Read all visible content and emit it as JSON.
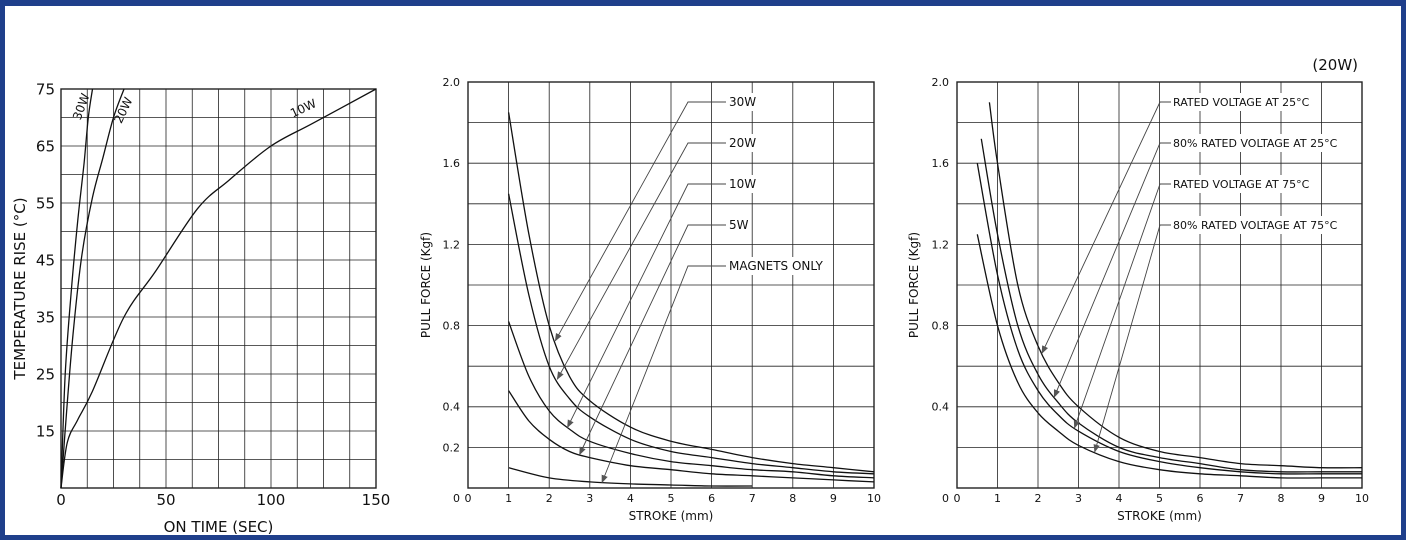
{
  "colors": {
    "frame": "#1f3f8b",
    "grid": "#222222",
    "curve": "#111111",
    "leader": "#444444"
  },
  "corner_note": "(20W)",
  "chart_data": [
    {
      "type": "line",
      "xlabel": "ON TIME (SEC)",
      "ylabel": "TEMPERATURE RISE (°C)",
      "xlim": [
        0,
        150
      ],
      "ylim": [
        5,
        75
      ],
      "xticks": [
        0,
        50,
        100,
        150
      ],
      "yticks": [
        15,
        25,
        35,
        45,
        55,
        65,
        75
      ],
      "grid": true,
      "series": [
        {
          "name": "30W",
          "x": [
            0,
            2,
            5,
            8,
            11,
            13,
            15
          ],
          "y": [
            5,
            25,
            40,
            52,
            62,
            70,
            75
          ]
        },
        {
          "name": "20W",
          "x": [
            0,
            3,
            6,
            10,
            15,
            20,
            25,
            30
          ],
          "y": [
            5,
            20,
            33,
            46,
            56,
            63,
            70,
            75
          ]
        },
        {
          "name": "10W",
          "x": [
            0,
            3,
            8,
            15,
            30,
            45,
            65,
            80,
            100,
            120,
            150
          ],
          "y": [
            5,
            13,
            17,
            22,
            35,
            43,
            54,
            59,
            65,
            69,
            75
          ]
        }
      ]
    },
    {
      "type": "line",
      "xlabel": "STROKE (mm)",
      "ylabel": "PULL FORCE (Kgf)",
      "xlim": [
        0,
        10
      ],
      "ylim": [
        0,
        2.0
      ],
      "xticks": [
        0,
        1,
        2,
        3,
        4,
        5,
        6,
        7,
        8,
        9,
        10
      ],
      "yticks": [
        0.2,
        0.4,
        0.8,
        1.2,
        1.6,
        2.0
      ],
      "grid": true,
      "series": [
        {
          "name": "30W",
          "x": [
            1,
            1.5,
            2,
            2.5,
            3,
            4,
            5,
            6,
            7,
            8,
            9,
            10
          ],
          "y": [
            1.85,
            1.25,
            0.8,
            0.55,
            0.43,
            0.3,
            0.23,
            0.19,
            0.15,
            0.12,
            0.1,
            0.08
          ]
        },
        {
          "name": "20W",
          "x": [
            1,
            1.5,
            2,
            2.5,
            3,
            4,
            5,
            6,
            7,
            8,
            9,
            10
          ],
          "y": [
            1.45,
            0.95,
            0.6,
            0.44,
            0.35,
            0.24,
            0.18,
            0.15,
            0.12,
            0.1,
            0.08,
            0.07
          ]
        },
        {
          "name": "10W",
          "x": [
            1,
            1.5,
            2,
            2.5,
            3,
            4,
            5,
            6,
            7,
            8,
            9,
            10
          ],
          "y": [
            0.82,
            0.55,
            0.38,
            0.29,
            0.23,
            0.17,
            0.13,
            0.11,
            0.09,
            0.08,
            0.06,
            0.05
          ]
        },
        {
          "name": "5W",
          "x": [
            1,
            1.5,
            2,
            2.5,
            3,
            4,
            5,
            6,
            7,
            8,
            9,
            10
          ],
          "y": [
            0.48,
            0.33,
            0.24,
            0.18,
            0.15,
            0.11,
            0.09,
            0.07,
            0.06,
            0.05,
            0.04,
            0.03
          ]
        },
        {
          "name": "MAGNETS ONLY",
          "x": [
            1,
            2,
            3,
            4,
            5,
            6,
            7
          ],
          "y": [
            0.1,
            0.05,
            0.03,
            0.02,
            0.015,
            0.01,
            0.01
          ]
        }
      ]
    },
    {
      "type": "line",
      "xlabel": "STROKE (mm)",
      "ylabel": "PULL FORCE (Kgf)",
      "xlim": [
        0,
        10
      ],
      "ylim": [
        0,
        2.0
      ],
      "xticks": [
        0,
        1,
        2,
        3,
        4,
        5,
        6,
        7,
        8,
        9,
        10
      ],
      "yticks": [
        0.4,
        0.8,
        1.2,
        1.6,
        2.0
      ],
      "grid": true,
      "series": [
        {
          "name": "RATED VOLTAGE AT 25°C",
          "x": [
            0.8,
            1,
            1.5,
            2,
            2.5,
            3,
            4,
            5,
            6,
            7,
            8,
            9,
            10
          ],
          "y": [
            1.9,
            1.6,
            1.0,
            0.7,
            0.52,
            0.4,
            0.25,
            0.18,
            0.15,
            0.12,
            0.11,
            0.1,
            0.1
          ]
        },
        {
          "name": "80% RATED VOLTAGE AT 25°C",
          "x": [
            0.6,
            1,
            1.5,
            2,
            2.5,
            3,
            4,
            5,
            6,
            7,
            8,
            9,
            10
          ],
          "y": [
            1.72,
            1.25,
            0.8,
            0.56,
            0.42,
            0.32,
            0.2,
            0.15,
            0.12,
            0.09,
            0.08,
            0.08,
            0.08
          ]
        },
        {
          "name": "RATED VOLTAGE AT 75°C",
          "x": [
            0.5,
            1,
            1.5,
            2,
            2.5,
            3,
            4,
            5,
            6,
            7,
            8,
            9,
            10
          ],
          "y": [
            1.6,
            1.05,
            0.68,
            0.48,
            0.36,
            0.28,
            0.18,
            0.13,
            0.1,
            0.08,
            0.07,
            0.07,
            0.07
          ]
        },
        {
          "name": "80% RATED VOLTAGE AT 75°C",
          "x": [
            0.5,
            1,
            1.5,
            2,
            2.5,
            3,
            4,
            5,
            6,
            7,
            8,
            9,
            10
          ],
          "y": [
            1.25,
            0.8,
            0.52,
            0.37,
            0.28,
            0.21,
            0.13,
            0.09,
            0.07,
            0.06,
            0.05,
            0.05,
            0.05
          ]
        }
      ]
    }
  ]
}
